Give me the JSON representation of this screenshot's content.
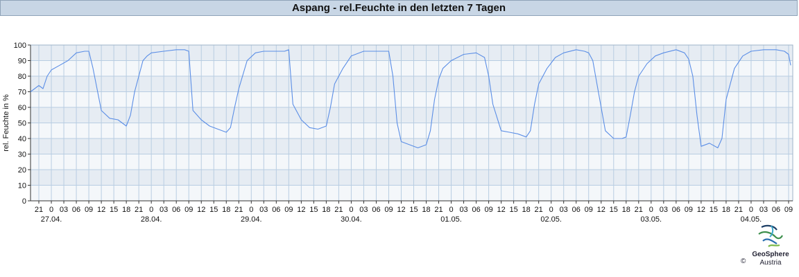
{
  "title": "Aspang - rel.Feuchte in den letzten 7 Tagen",
  "logo": {
    "name": "GeoSphere",
    "sub": "Austria",
    "copyright": "©"
  },
  "colors": {
    "line": "#5b8ee6",
    "band_dark": "#e6ecf3",
    "band_light": "#f4f7fa",
    "grid": "#b8cde2"
  },
  "chart_data": {
    "type": "line",
    "title": "Aspang - rel.Feuchte in den letzten 7 Tagen",
    "xlabel": "",
    "ylabel": "rel. Feuchte in %",
    "ylim": [
      0,
      100
    ],
    "yticks": [
      0,
      10,
      20,
      30,
      40,
      50,
      60,
      70,
      80,
      90,
      100
    ],
    "xlim": [
      "26.04. 19:00",
      "04.05. 10:00"
    ],
    "hour_tick_step_h": 3,
    "date_labels": [
      "27.04.",
      "28.04.",
      "29.04.",
      "30.04.",
      "01.05.",
      "02.05.",
      "03.05.",
      "04.05."
    ],
    "grid": true,
    "legend": "none",
    "series": [
      {
        "x": [
          "26.04. 19:00",
          "26.04. 20:00",
          "26.04. 21:00",
          "26.04. 22:00",
          "26.04. 23:00",
          "27.04. 00:00",
          "27.04. 02:00",
          "27.04. 04:00",
          "27.04. 06:00",
          "27.04. 08:00",
          "27.04. 09:00",
          "27.04. 10:00",
          "27.04. 12:00",
          "27.04. 14:00",
          "27.04. 16:00",
          "27.04. 17:00",
          "27.04. 18:00",
          "27.04. 19:00",
          "27.04. 20:00",
          "27.04. 21:00",
          "27.04. 22:00",
          "27.04. 23:00",
          "28.04. 00:00",
          "28.04. 03:00",
          "28.04. 06:00",
          "28.04. 08:00",
          "28.04. 09:00",
          "28.04. 10:00",
          "28.04. 12:00",
          "28.04. 14:00",
          "28.04. 16:00",
          "28.04. 18:00",
          "28.04. 19:00",
          "28.04. 20:00",
          "28.04. 21:00",
          "28.04. 23:00",
          "29.04. 01:00",
          "29.04. 03:00",
          "29.04. 06:00",
          "29.04. 08:00",
          "29.04. 09:00",
          "29.04. 10:00",
          "29.04. 12:00",
          "29.04. 14:00",
          "29.04. 16:00",
          "29.04. 18:00",
          "29.04. 19:00",
          "29.04. 20:00",
          "29.04. 22:00",
          "30.04. 00:00",
          "30.04. 03:00",
          "30.04. 06:00",
          "30.04. 09:00",
          "30.04. 10:00",
          "30.04. 11:00",
          "30.04. 12:00",
          "30.04. 14:00",
          "30.04. 16:00",
          "30.04. 18:00",
          "30.04. 19:00",
          "30.04. 20:00",
          "30.04. 21:00",
          "30.04. 22:00",
          "01.05. 00:00",
          "01.05. 03:00",
          "01.05. 06:00",
          "01.05. 08:00",
          "01.05. 09:00",
          "01.05. 10:00",
          "01.05. 12:00",
          "01.05. 14:00",
          "01.05. 16:00",
          "01.05. 18:00",
          "01.05. 19:00",
          "01.05. 20:00",
          "01.05. 21:00",
          "01.05. 23:00",
          "02.05. 01:00",
          "02.05. 03:00",
          "02.05. 06:00",
          "02.05. 08:00",
          "02.05. 09:00",
          "02.05. 10:00",
          "02.05. 11:00",
          "02.05. 13:00",
          "02.05. 15:00",
          "02.05. 17:00",
          "02.05. 18:00",
          "02.05. 19:00",
          "02.05. 20:00",
          "02.05. 21:00",
          "02.05. 23:00",
          "03.05. 01:00",
          "03.05. 03:00",
          "03.05. 06:00",
          "03.05. 08:00",
          "03.05. 09:00",
          "03.05. 10:00",
          "03.05. 11:00",
          "03.05. 12:00",
          "03.05. 14:00",
          "03.05. 16:00",
          "03.05. 17:00",
          "03.05. 18:00",
          "03.05. 19:00",
          "03.05. 20:00",
          "03.05. 22:00",
          "04.05. 00:00",
          "04.05. 03:00",
          "04.05. 06:00",
          "04.05. 08:00",
          "04.05. 09:00",
          "04.05. 09:30"
        ],
        "values": [
          70,
          72,
          74,
          72,
          80,
          84,
          87,
          90,
          95,
          96,
          96,
          85,
          58,
          53,
          52,
          50,
          48,
          55,
          70,
          80,
          90,
          93,
          95,
          96,
          97,
          97,
          96,
          58,
          52,
          48,
          46,
          44,
          47,
          60,
          72,
          90,
          95,
          96,
          96,
          96,
          97,
          62,
          52,
          47,
          46,
          48,
          60,
          75,
          85,
          93,
          96,
          96,
          96,
          80,
          50,
          38,
          36,
          34,
          36,
          45,
          65,
          78,
          85,
          90,
          94,
          95,
          92,
          80,
          62,
          45,
          44,
          43,
          41,
          45,
          62,
          75,
          85,
          92,
          95,
          97,
          96,
          95,
          90,
          75,
          45,
          40,
          40,
          41,
          55,
          70,
          80,
          88,
          93,
          95,
          97,
          95,
          91,
          80,
          55,
          35,
          37,
          34,
          40,
          65,
          75,
          85,
          93,
          96,
          97,
          97,
          96,
          94,
          87
        ]
      }
    ]
  }
}
